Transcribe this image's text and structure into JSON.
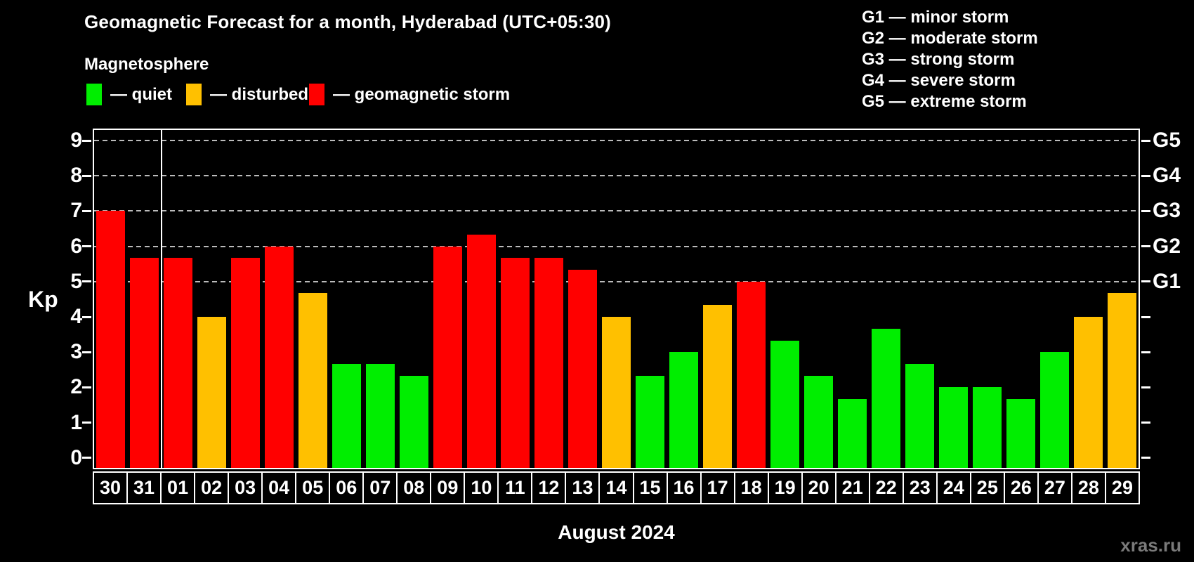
{
  "header": {
    "title": "Geomagnetic Forecast for a month, Hyderabad (UTC+05:30)",
    "subtitle": "Magnetosphere"
  },
  "legend": {
    "items": [
      {
        "name": "quiet",
        "label": "— quiet",
        "color": "#00ee00"
      },
      {
        "name": "disturbed",
        "label": "— disturbed",
        "color": "#ffc000"
      },
      {
        "name": "storm",
        "label": "— geomagnetic storm",
        "color": "#ff0000"
      }
    ]
  },
  "g_scale_legend": {
    "items": [
      "G1 — minor storm",
      "G2 — moderate storm",
      "G3 — strong storm",
      "G4 — severe storm",
      "G5 — extreme storm"
    ]
  },
  "watermark": "xras.ru",
  "chart_data": {
    "type": "bar",
    "title": "Geomagnetic Forecast for a month, Hyderabad (UTC+05:30)",
    "subtitle": "Magnetosphere",
    "xlabel": "August 2024",
    "ylabel": "Kp",
    "ylim": [
      0,
      9
    ],
    "y_ticks": [
      0,
      1,
      2,
      3,
      4,
      5,
      6,
      7,
      8,
      9
    ],
    "gridlines_at_kp": [
      5,
      6,
      7,
      8,
      9
    ],
    "grid": "dashed horizontal at storm levels only",
    "right_axis_labels": [
      {
        "kp": 5,
        "label": "G1"
      },
      {
        "kp": 6,
        "label": "G2"
      },
      {
        "kp": 7,
        "label": "G3"
      },
      {
        "kp": 8,
        "label": "G4"
      },
      {
        "kp": 9,
        "label": "G5"
      }
    ],
    "month_separator_after_index": 1,
    "categories": [
      "30",
      "31",
      "01",
      "02",
      "03",
      "04",
      "05",
      "06",
      "07",
      "08",
      "09",
      "10",
      "11",
      "12",
      "13",
      "14",
      "15",
      "16",
      "17",
      "18",
      "19",
      "20",
      "21",
      "22",
      "23",
      "24",
      "25",
      "26",
      "27",
      "28",
      "29"
    ],
    "values": [
      7,
      5.67,
      5.67,
      4,
      5.67,
      6,
      4.67,
      2.67,
      2.67,
      2.33,
      6,
      6.33,
      5.67,
      5.67,
      5.33,
      4,
      2.33,
      3,
      4.33,
      5,
      3.33,
      2.33,
      1.67,
      3.67,
      2.67,
      2,
      2,
      1.67,
      3,
      4,
      4.67
    ],
    "states": [
      "storm",
      "storm",
      "storm",
      "disturbed",
      "storm",
      "storm",
      "disturbed",
      "quiet",
      "quiet",
      "quiet",
      "storm",
      "storm",
      "storm",
      "storm",
      "storm",
      "disturbed",
      "quiet",
      "quiet",
      "disturbed",
      "storm",
      "quiet",
      "quiet",
      "quiet",
      "quiet",
      "quiet",
      "quiet",
      "quiet",
      "quiet",
      "quiet",
      "disturbed",
      "disturbed"
    ],
    "state_colors": {
      "quiet": "#00ee00",
      "disturbed": "#ffc000",
      "storm": "#ff0000"
    },
    "legend_position": "top-left",
    "background": "#000000"
  }
}
